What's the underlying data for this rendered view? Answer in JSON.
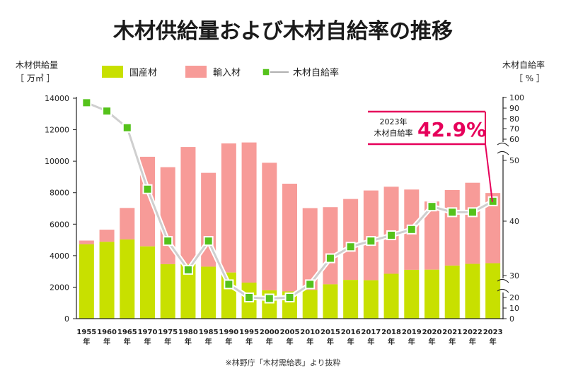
{
  "title": "木材供給量および木材自給率の推移",
  "left_axis": {
    "label": "木材供給量",
    "unit": "［ 万㎥ ］"
  },
  "right_axis": {
    "label": "木材自給率",
    "unit": "［ % ］"
  },
  "legend": {
    "domestic": "国産材",
    "imported": "輸入材",
    "rate": "木材自給率"
  },
  "annotation": {
    "label_line1": "2023年",
    "label_line2": "木材自給率",
    "value": "42.9%"
  },
  "source": "※林野庁「木材需給表」より抜粋",
  "colors": {
    "domestic": "#c8e000",
    "imported": "#f79b98",
    "rate_marker": "#55c21b",
    "rate_line": "#cfcfcf",
    "accent": "#e6005a"
  },
  "chart_data": {
    "type": "bar",
    "stacked": true,
    "categories": [
      "1955",
      "1960",
      "1965",
      "1970",
      "1975",
      "1980",
      "1985",
      "1990",
      "1995",
      "2000",
      "2005",
      "2010",
      "2015",
      "2016",
      "2017",
      "2018",
      "2019",
      "2020",
      "2021",
      "2022",
      "2023"
    ],
    "category_suffix": "年",
    "series": [
      {
        "name": "国産材",
        "values": [
          4730,
          4880,
          5030,
          4590,
          3460,
          3460,
          3300,
          2930,
          2290,
          1800,
          1730,
          1820,
          2180,
          2460,
          2440,
          2850,
          3100,
          3110,
          3370,
          3480,
          3520
        ]
      },
      {
        "name": "輸入材",
        "values": [
          230,
          770,
          2000,
          5690,
          6160,
          7440,
          5960,
          8200,
          8900,
          8100,
          6840,
          5200,
          4900,
          5140,
          5700,
          5530,
          5100,
          4330,
          4800,
          5150,
          4460
        ]
      }
    ],
    "line_series": {
      "name": "木材自給率",
      "axis": "right",
      "values": [
        95,
        87,
        71,
        45,
        36,
        31,
        36,
        26,
        20,
        19,
        20,
        26,
        33,
        35,
        36,
        37,
        38,
        42,
        41,
        41,
        42.9
      ]
    },
    "left_ticks": [
      0,
      2000,
      4000,
      6000,
      8000,
      10000,
      12000,
      14000
    ],
    "right_ticks": [
      0,
      10,
      20,
      30,
      40,
      50,
      60,
      70,
      80,
      90,
      100
    ],
    "ylim_left": [
      0,
      14000
    ],
    "ylim_right": [
      0,
      100
    ],
    "right_axis_breaks": true,
    "grid": false,
    "legend_position": "top"
  }
}
